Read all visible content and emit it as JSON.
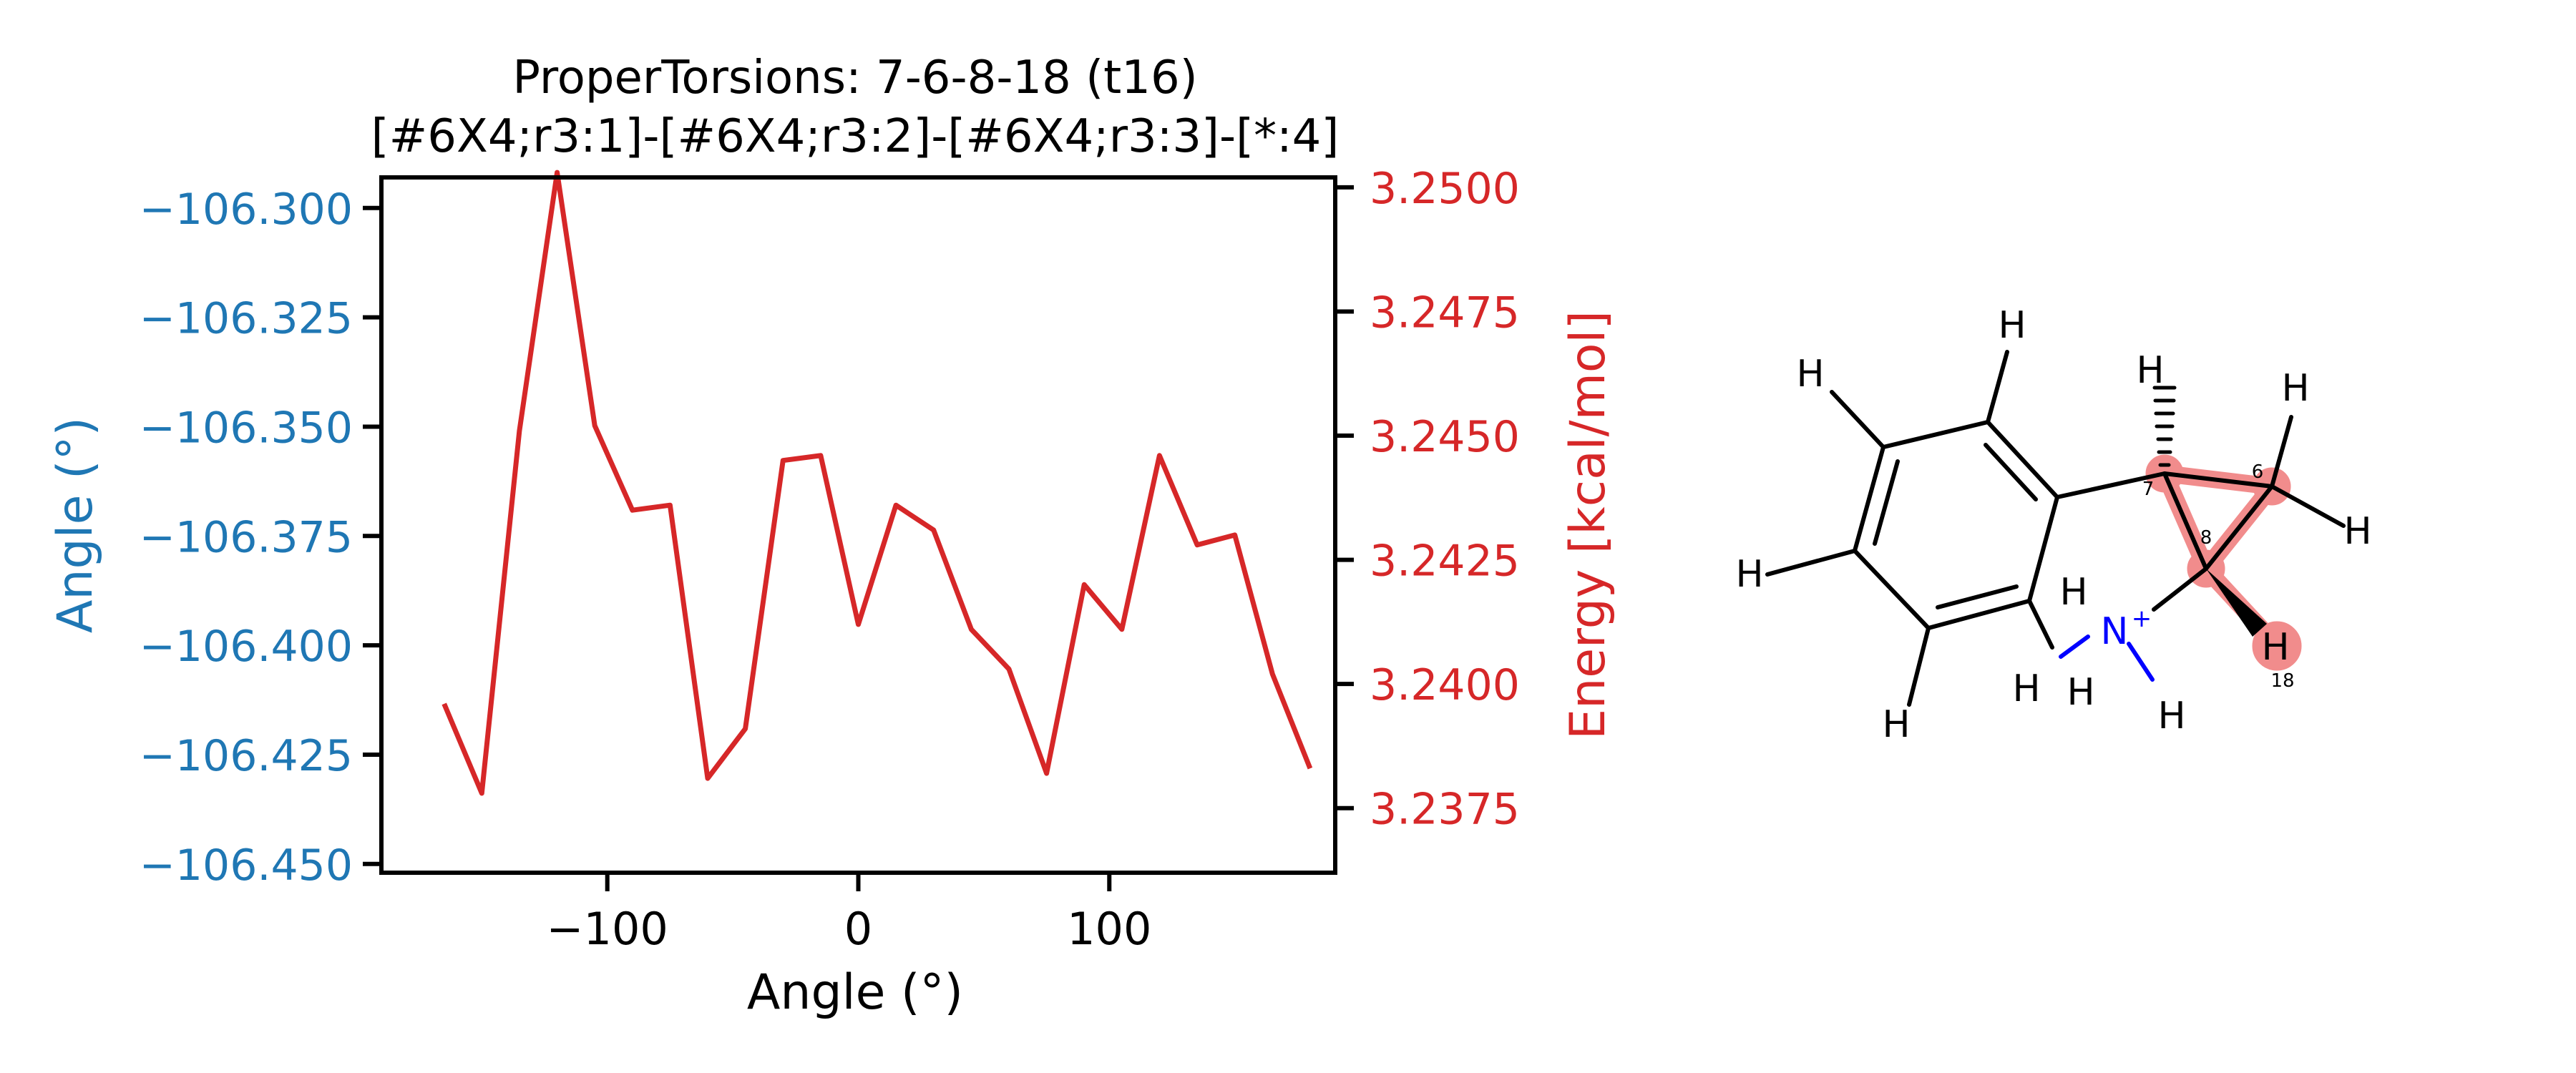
{
  "chart_data": {
    "type": "line",
    "title": "ProperTorsions: 7-6-8-18 (t16)",
    "subtitle": "[#6X4;r3:1]-[#6X4;r3:2]-[#6X4;r3:3]-[*:4]",
    "xlabel": "Angle (°)",
    "ylabel_left": "Angle (°)",
    "ylabel_right": "Energy [kcal/mol]",
    "xlim": [
      -190,
      190
    ],
    "ylim_left": [
      -106.452,
      -106.293
    ],
    "ylim_right": [
      3.2362,
      3.2502
    ],
    "x_ticks": [
      -100,
      0,
      100
    ],
    "x_tick_labels": [
      "−100",
      "0",
      "100"
    ],
    "y_left_ticks": [
      -106.3,
      -106.325,
      -106.35,
      -106.375,
      -106.4,
      -106.425,
      -106.45
    ],
    "y_left_tick_labels": [
      "−106.300",
      "−106.325",
      "−106.350",
      "−106.375",
      "−106.400",
      "−106.425",
      "−106.450"
    ],
    "y_right_ticks": [
      3.25,
      3.2475,
      3.245,
      3.2425,
      3.24,
      3.2375
    ],
    "y_right_tick_labels": [
      "3.2500",
      "3.2475",
      "3.2450",
      "3.2425",
      "3.2400",
      "3.2375"
    ],
    "grid": false,
    "colors": {
      "left_axis": "#1f77b4",
      "energy": "#d62728",
      "axes": "#000000"
    },
    "series": [
      {
        "axis": "right",
        "color": "#d62728",
        "x": [
          -165,
          -150,
          -135,
          -120,
          -105,
          -90,
          -75,
          -60,
          -45,
          -30,
          -15,
          0,
          15,
          30,
          45,
          60,
          75,
          90,
          105,
          120,
          135,
          150,
          165,
          180
        ],
        "y": [
          3.2396,
          3.2378,
          3.2451,
          3.2503,
          3.2452,
          3.2435,
          3.2436,
          3.2381,
          3.2391,
          3.2445,
          3.2446,
          3.2412,
          3.2436,
          3.2431,
          3.2411,
          3.2403,
          3.2382,
          3.242,
          3.2411,
          3.2446,
          3.2428,
          3.243,
          3.2402,
          3.2383
        ]
      }
    ]
  },
  "molecule": {
    "atoms": {
      "h_top_left": "H",
      "h_top_ring": "H",
      "h_left": "H",
      "h_bottom_left": "H",
      "h_wedge_hash": "H",
      "h_cp_top": "H",
      "h_cp_right": "H",
      "h_nh_top": "H",
      "h_nh_left1": "H",
      "h_nh_left2": "H",
      "h_nh_bottom": "H",
      "h_18": "H",
      "n_plus": "N",
      "charge": "+"
    },
    "atom_indices": {
      "c7": "7",
      "c6": "6",
      "c8": "8",
      "h18": "18"
    },
    "colors": {
      "bond": "#000000",
      "nitrogen": "#0000ff",
      "highlight": "#f08080"
    }
  }
}
